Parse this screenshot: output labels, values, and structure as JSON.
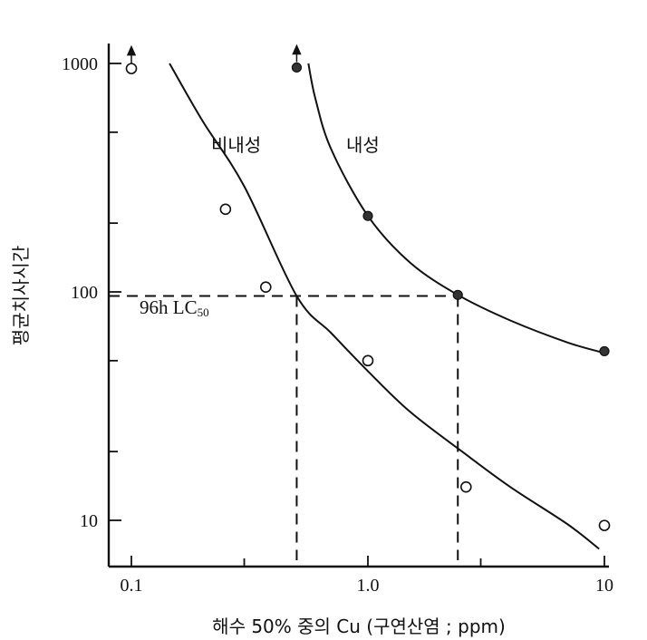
{
  "chart_data": {
    "type": "scatter",
    "xscale": "log",
    "yscale": "log",
    "xlim": [
      0.1,
      10
    ],
    "ylim": [
      10,
      1000
    ],
    "xticks": [
      0.1,
      1.0,
      10
    ],
    "xtick_labels": [
      "0.1",
      "1.0",
      "10"
    ],
    "yticks": [
      10,
      100,
      1000
    ],
    "ytick_labels": [
      "10",
      "100",
      "1000"
    ],
    "xlabel": "해수 50% 중의 Cu (구연산염 ; ppm)",
    "ylabel": "평균치사시간",
    "grid": false,
    "series": [
      {
        "name": "비내성",
        "marker": "open-circle",
        "points": [
          {
            "x": 0.1,
            "y": 950,
            "censored": true
          },
          {
            "x": 0.25,
            "y": 230
          },
          {
            "x": 0.37,
            "y": 105
          },
          {
            "x": 1.0,
            "y": 50
          },
          {
            "x": 2.6,
            "y": 14
          },
          {
            "x": 10,
            "y": 9.5
          }
        ],
        "curve": [
          [
            0.145,
            1000
          ],
          [
            0.2,
            560
          ],
          [
            0.3,
            290
          ],
          [
            0.5,
            96
          ],
          [
            0.7,
            66
          ],
          [
            1.0,
            45
          ],
          [
            1.5,
            30
          ],
          [
            2.5,
            20
          ],
          [
            4.0,
            14
          ],
          [
            7.0,
            9.6
          ],
          [
            9.5,
            7.5
          ]
        ]
      },
      {
        "name": "내성",
        "marker": "filled-circle",
        "points": [
          {
            "x": 0.5,
            "y": 960,
            "censored": true
          },
          {
            "x": 1.0,
            "y": 215
          },
          {
            "x": 2.4,
            "y": 97
          },
          {
            "x": 10,
            "y": 55
          }
        ],
        "curve": [
          [
            0.56,
            1000
          ],
          [
            0.6,
            700
          ],
          [
            0.7,
            420
          ],
          [
            1.0,
            215
          ],
          [
            1.5,
            135
          ],
          [
            2.4,
            97
          ],
          [
            4.0,
            75
          ],
          [
            7.0,
            60
          ],
          [
            10,
            54
          ]
        ]
      }
    ],
    "annotations": [
      {
        "text": "96h LC",
        "subscript": "50",
        "x": 0.14,
        "y": 84
      },
      {
        "type": "reference-line",
        "y": 96,
        "x_from": 0.1,
        "x_to": 2.4
      },
      {
        "type": "reference-line",
        "x": 0.5,
        "y_from": 96,
        "y_to": 8.8
      },
      {
        "type": "reference-line",
        "x": 2.4,
        "y_from": 96,
        "y_to": 8.8
      }
    ]
  }
}
